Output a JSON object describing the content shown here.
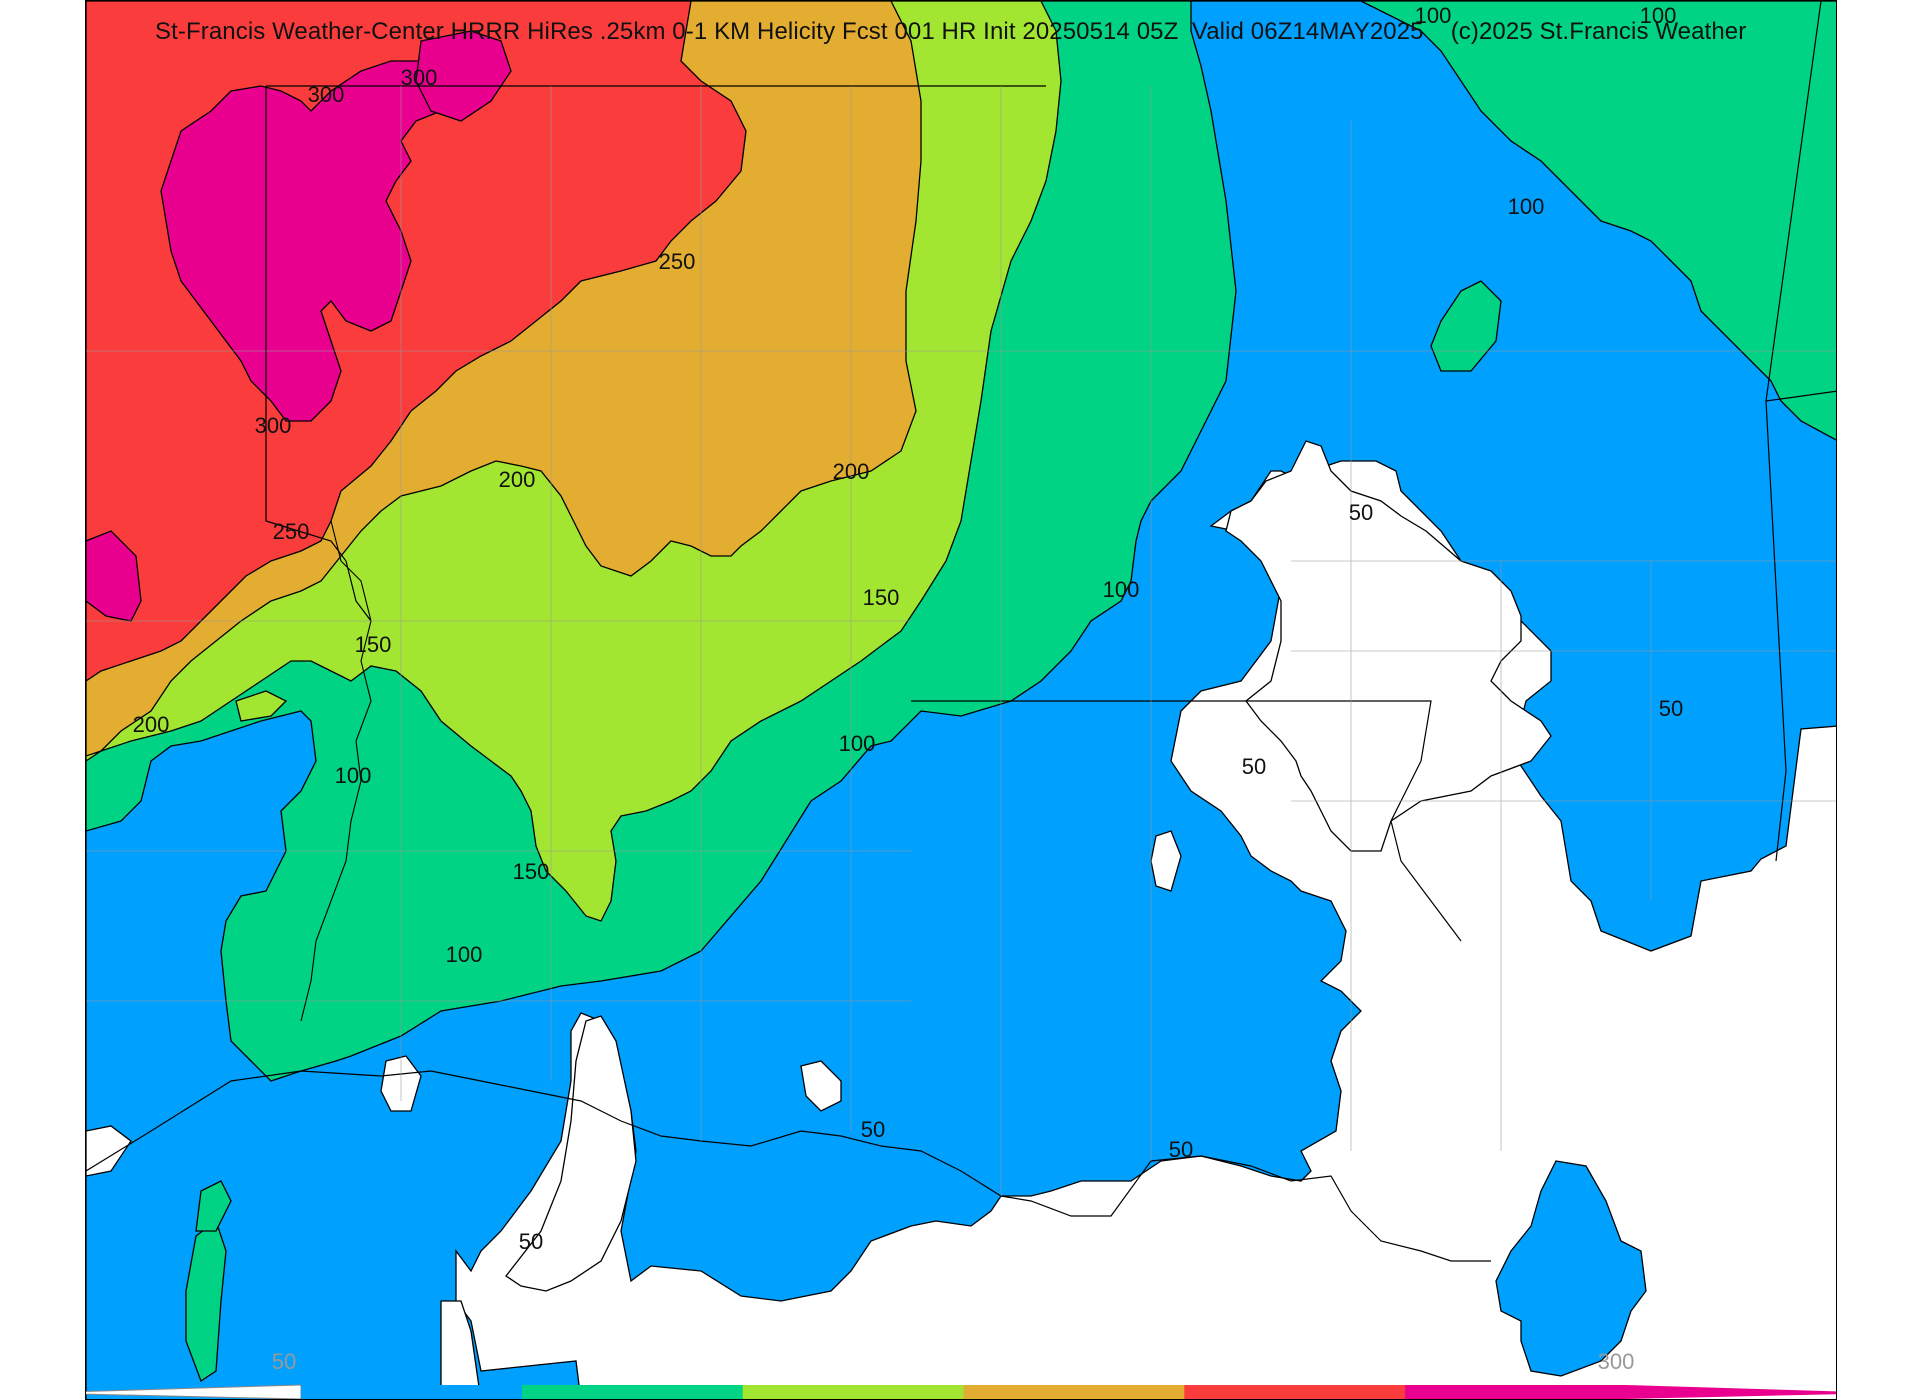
{
  "title": "St-Francis Weather-Center HRRR HiRes .25km 0-1 KM Helicity Fcst 001 HR Init 20250514 05Z  Valid 06Z14MAY2025    (c)2025 St.Francis Weather",
  "colors": {
    "below_50": "#ffffff",
    "50_100": "#00a0ff",
    "100_150": "#00d383",
    "150_200": "#a2e632",
    "200_250": "#e3ad31",
    "250_300": "#fa3c3c",
    "above_300": "#ea008f",
    "border": "#000000",
    "county": "#999999"
  },
  "contour_labels": [
    "300",
    "300",
    "250",
    "300",
    "250",
    "200",
    "200",
    "150",
    "150",
    "200",
    "100",
    "150",
    "100",
    "100",
    "100",
    "50",
    "50",
    "50",
    "50",
    "50",
    "50",
    "100",
    "100",
    "100"
  ],
  "colorbar": {
    "min_label": "50",
    "max_label": "300",
    "bins": [
      "#00a0ff",
      "#00d383",
      "#a2e632",
      "#e3ad31",
      "#fa3c3c",
      "#ea008f"
    ]
  }
}
